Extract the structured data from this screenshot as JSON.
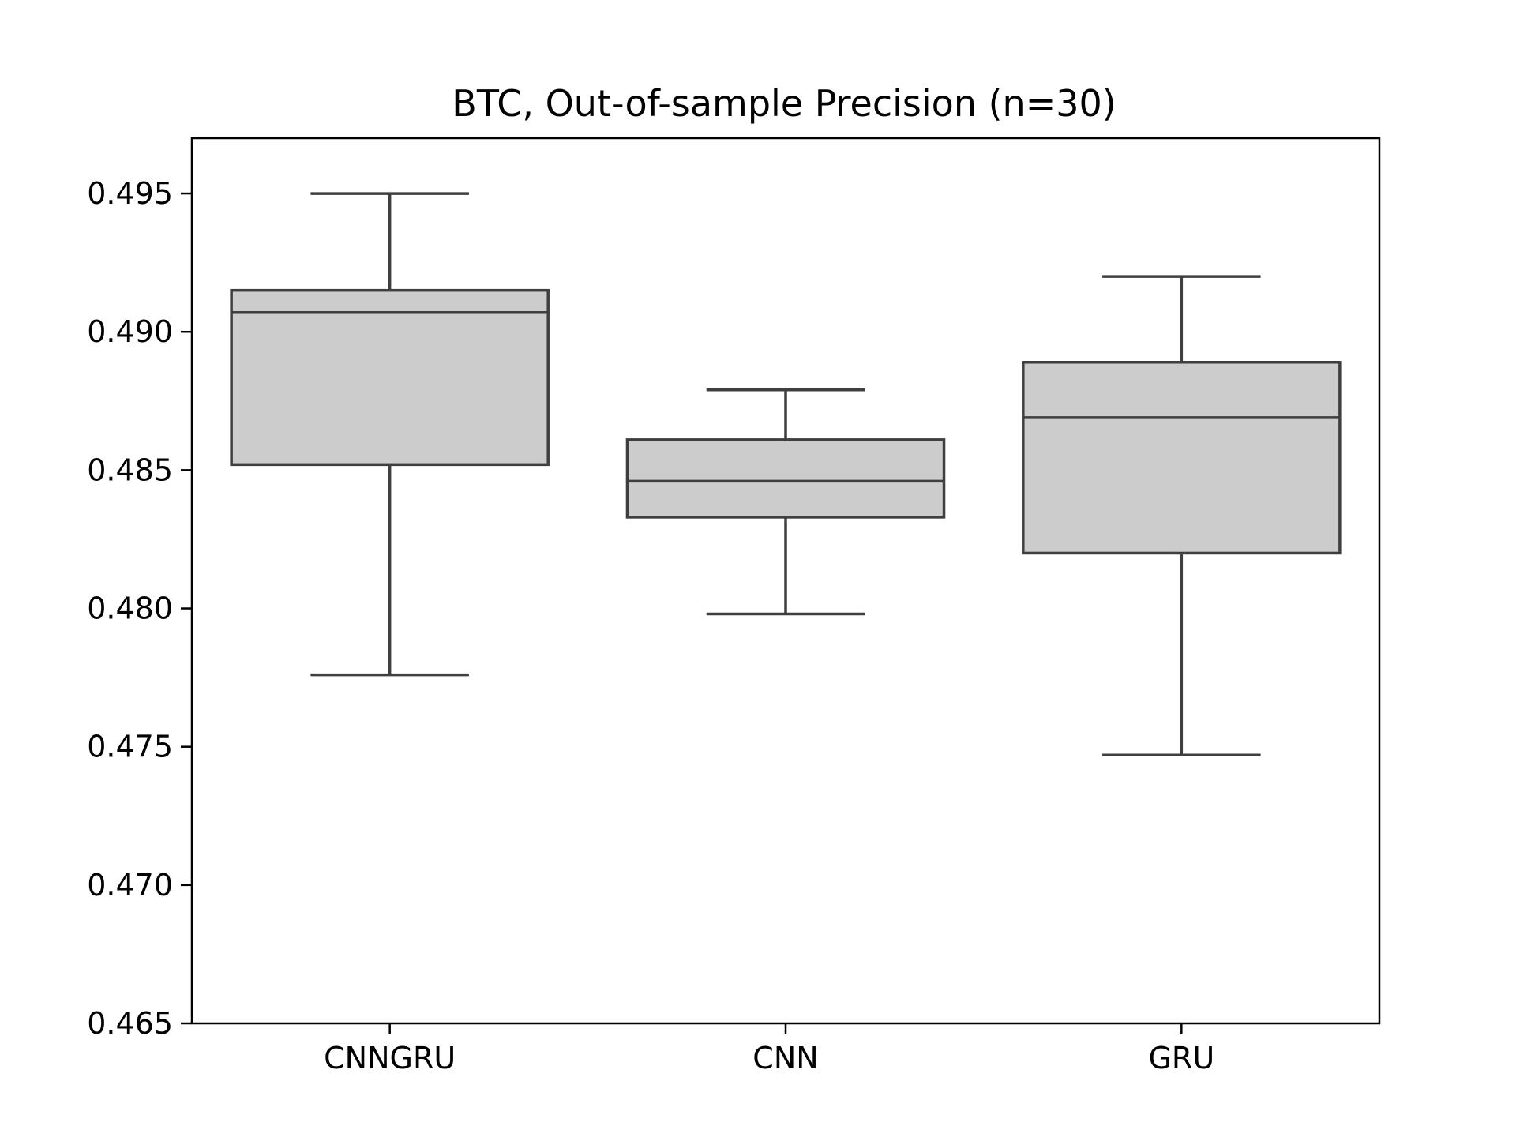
{
  "chart_data": {
    "type": "box",
    "title": "BTC, Out-of-sample Precision (n=30)",
    "xlabel": "",
    "ylabel": "",
    "categories": [
      "CNNGRU",
      "CNN",
      "GRU"
    ],
    "ylim": [
      0.465,
      0.497
    ],
    "yticks": [
      0.465,
      0.47,
      0.475,
      0.48,
      0.485,
      0.49,
      0.495
    ],
    "ytick_labels": [
      "0.465",
      "0.470",
      "0.475",
      "0.480",
      "0.485",
      "0.490",
      "0.495"
    ],
    "boxes": [
      {
        "category": "CNNGRU",
        "whisker_low": 0.4776,
        "q1": 0.4852,
        "median": 0.4907,
        "q3": 0.4915,
        "whisker_high": 0.495
      },
      {
        "category": "CNN",
        "whisker_low": 0.4798,
        "q1": 0.4833,
        "median": 0.4846,
        "q3": 0.4861,
        "whisker_high": 0.4879
      },
      {
        "category": "GRU",
        "whisker_low": 0.4747,
        "q1": 0.482,
        "median": 0.4869,
        "q3": 0.4889,
        "whisker_high": 0.492
      }
    ],
    "grid": false,
    "legend": "none",
    "colors": {
      "box_fill": "#cccccc",
      "box_edge": "#3f3f3f",
      "axis": "#000000"
    }
  }
}
